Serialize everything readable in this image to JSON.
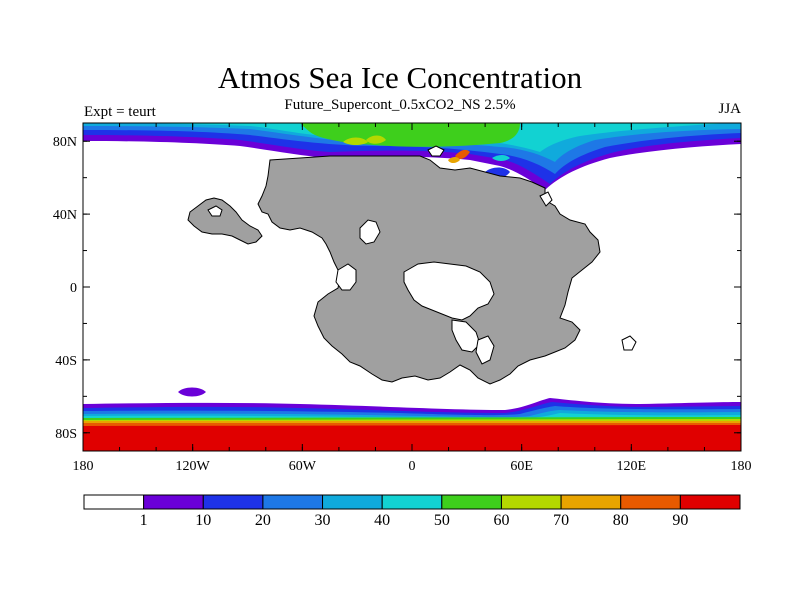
{
  "map": {
    "title": "Atmos Sea Ice Concentration",
    "subtitle": "Future_Supercont_0.5xCO2_NS 2.5%",
    "left_label": "Expt = teurt",
    "right_label": "JJA",
    "x_ticks": [
      "180",
      "120W",
      "60W",
      "0",
      "60E",
      "120E",
      "180"
    ],
    "y_ticks": [
      "80N",
      "40N",
      "0",
      "40S",
      "80S"
    ],
    "land_color": "#a0a0a0"
  },
  "colorbar": {
    "colors": [
      "#ffffff",
      "#6a00d8",
      "#1e32e8",
      "#1e78e6",
      "#10aadc",
      "#12d2d2",
      "#3ecf1c",
      "#b4d800",
      "#e8a400",
      "#e85a00",
      "#e00000"
    ],
    "labels": [
      "1",
      "10",
      "20",
      "30",
      "40",
      "50",
      "60",
      "70",
      "80",
      "90"
    ]
  }
}
